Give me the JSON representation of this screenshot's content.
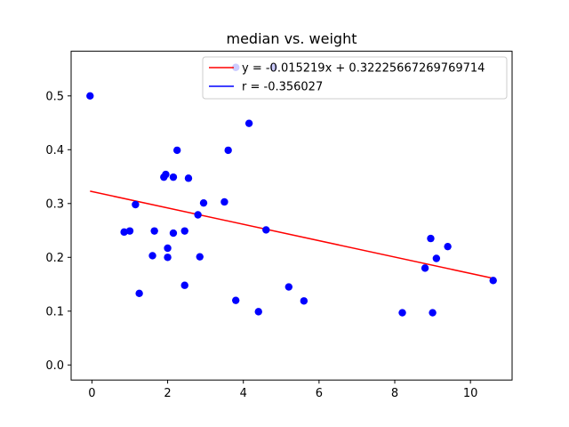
{
  "chart_data": {
    "type": "scatter",
    "title": "median vs. weight",
    "xlabel": "",
    "ylabel": "",
    "xlim": [
      -0.55,
      11.1
    ],
    "ylim": [
      -0.028,
      0.583
    ],
    "x_ticks": [
      0,
      2,
      4,
      6,
      8,
      10
    ],
    "y_ticks": [
      0.0,
      0.1,
      0.2,
      0.3,
      0.4,
      0.5
    ],
    "y_tick_labels": [
      "0.0",
      "0.1",
      "0.2",
      "0.3",
      "0.4",
      "0.5"
    ],
    "grid": false,
    "legend_position": "top-right",
    "colors": {
      "points": "#0000ff",
      "fit_line": "#ff0000",
      "r_line": "#0000ff"
    },
    "series": [
      {
        "kind": "points",
        "x": [
          -0.05,
          0.85,
          1.0,
          1.15,
          1.25,
          1.6,
          1.65,
          1.9,
          1.95,
          2.0,
          2.0,
          2.15,
          2.15,
          2.25,
          2.45,
          2.45,
          2.55,
          2.8,
          2.85,
          2.95,
          3.5,
          3.6,
          3.8,
          3.8,
          4.15,
          4.4,
          4.6,
          4.8,
          5.2,
          5.6,
          8.2,
          8.8,
          8.95,
          9.0,
          9.1,
          9.4,
          10.6
        ],
        "y": [
          0.5,
          0.247,
          0.249,
          0.298,
          0.133,
          0.203,
          0.249,
          0.349,
          0.354,
          0.217,
          0.2,
          0.349,
          0.245,
          0.399,
          0.148,
          0.249,
          0.347,
          0.279,
          0.201,
          0.301,
          0.303,
          0.399,
          0.12,
          0.553,
          0.449,
          0.099,
          0.251,
          0.553,
          0.145,
          0.119,
          0.097,
          0.18,
          0.235,
          0.097,
          0.198,
          0.22,
          0.157
        ]
      },
      {
        "kind": "line",
        "name": "y = -0.015219x + 0.32225667269769714",
        "slope": -0.015219,
        "intercept": 0.32225667269769714,
        "x_range": [
          -0.05,
          10.6
        ]
      },
      {
        "kind": "legend-only",
        "name": "r = -0.356027"
      }
    ]
  }
}
